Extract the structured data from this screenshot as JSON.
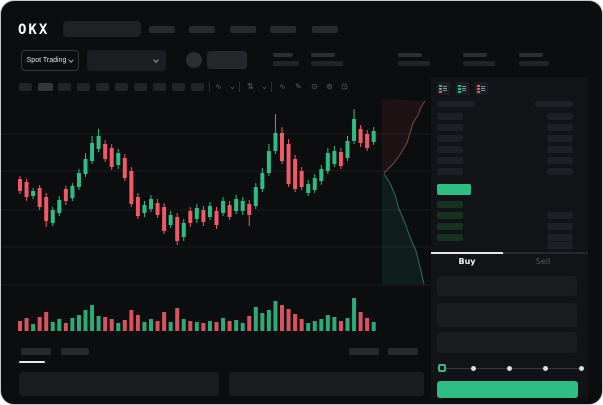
{
  "app": {
    "brand": "OKX"
  },
  "header": {
    "market_selector": {
      "label": "Spot Trading"
    },
    "nav_placeholder_count": 5
  },
  "toolbar": {
    "right_icons": [
      {
        "name": "indicator-wave-icon",
        "glyph": "∿"
      },
      {
        "name": "chevron-down-icon",
        "glyph": "⌄"
      },
      {
        "name": "compare-icon",
        "glyph": "⇅"
      },
      {
        "name": "chevron-down-icon-2",
        "glyph": "⌄"
      },
      {
        "name": "line-tool-icon",
        "glyph": "∿"
      },
      {
        "name": "draw-icon",
        "glyph": "✎"
      },
      {
        "name": "camera-icon",
        "glyph": "⊙"
      },
      {
        "name": "settings-icon",
        "glyph": "⊚"
      },
      {
        "name": "fullscreen-icon",
        "glyph": "⊡"
      }
    ]
  },
  "orderbook": {
    "layout_icons": [
      "book-both-icon",
      "book-bids-icon",
      "book-asks-icon"
    ],
    "ask_row_count": 7,
    "bid_row_count": 4,
    "last_price_highlight_color": "#2ebd85"
  },
  "trade_panel": {
    "tabs": [
      {
        "label": "Buy",
        "active": true
      },
      {
        "label": "Sell",
        "active": false
      }
    ],
    "inputs": 3,
    "slider": {
      "stops": 5,
      "position_index": 0
    },
    "submit_button_color": "#2ebd85"
  },
  "colors": {
    "up": "#2ebd85",
    "down": "#ef5a66",
    "grid": "#1b1d20"
  },
  "chart_data": {
    "type": "candlestick",
    "title": "",
    "xlabel": "",
    "ylabel": "",
    "ylim": [
      0,
      190
    ],
    "grid": true,
    "gridline_values": [
      4,
      42,
      79,
      118,
      155,
      193
    ],
    "candles_ochl": [
      [
        112,
        100,
        115,
        97
      ],
      [
        109,
        94,
        112,
        90
      ],
      [
        95,
        100,
        103,
        92
      ],
      [
        103,
        84,
        106,
        81
      ],
      [
        94,
        70,
        98,
        64
      ],
      [
        68,
        81,
        84,
        65
      ],
      [
        78,
        91,
        95,
        75
      ],
      [
        102,
        90,
        105,
        86
      ],
      [
        93,
        105,
        108,
        90
      ],
      [
        104,
        118,
        122,
        101
      ],
      [
        117,
        132,
        138,
        114
      ],
      [
        130,
        148,
        155,
        127
      ],
      [
        142,
        155,
        162,
        139
      ],
      [
        147,
        132,
        151,
        129
      ],
      [
        143,
        124,
        147,
        121
      ],
      [
        126,
        138,
        142,
        122
      ],
      [
        133,
        113,
        137,
        110
      ],
      [
        120,
        87,
        124,
        84
      ],
      [
        94,
        75,
        98,
        72
      ],
      [
        78,
        86,
        90,
        74
      ],
      [
        82,
        92,
        96,
        79
      ],
      [
        88,
        76,
        92,
        73
      ],
      [
        84,
        60,
        88,
        57
      ],
      [
        66,
        76,
        80,
        63
      ],
      [
        74,
        50,
        78,
        46
      ],
      [
        54,
        68,
        72,
        50
      ],
      [
        80,
        68,
        84,
        64
      ],
      [
        72,
        83,
        87,
        68
      ],
      [
        81,
        69,
        85,
        65
      ],
      [
        74,
        85,
        89,
        71
      ],
      [
        80,
        66,
        84,
        62
      ],
      [
        78,
        90,
        94,
        75
      ],
      [
        86,
        74,
        90,
        71
      ],
      [
        80,
        92,
        96,
        77
      ],
      [
        80,
        90,
        94,
        76
      ],
      [
        87,
        76,
        91,
        65
      ],
      [
        85,
        104,
        108,
        82
      ],
      [
        102,
        118,
        123,
        99
      ],
      [
        118,
        140,
        147,
        115
      ],
      [
        140,
        158,
        177,
        137
      ],
      [
        158,
        130,
        164,
        127
      ],
      [
        147,
        107,
        152,
        104
      ],
      [
        132,
        102,
        136,
        99
      ],
      [
        120,
        104,
        124,
        101
      ],
      [
        98,
        107,
        111,
        95
      ],
      [
        101,
        113,
        117,
        98
      ],
      [
        110,
        122,
        126,
        106
      ],
      [
        120,
        138,
        143,
        117
      ],
      [
        127,
        140,
        145,
        124
      ],
      [
        139,
        125,
        143,
        122
      ],
      [
        133,
        150,
        155,
        130
      ],
      [
        150,
        172,
        182,
        147
      ],
      [
        162,
        148,
        166,
        144
      ],
      [
        157,
        143,
        161,
        140
      ],
      [
        149,
        160,
        164,
        146
      ]
    ],
    "volumes": [
      10,
      13,
      7,
      14,
      19,
      9,
      12,
      8,
      13,
      16,
      21,
      26,
      15,
      14,
      12,
      8,
      11,
      21,
      16,
      9,
      12,
      10,
      19,
      9,
      23,
      12,
      10,
      9,
      8,
      10,
      9,
      13,
      10,
      11,
      8,
      15,
      24,
      18,
      21,
      30,
      26,
      22,
      17,
      12,
      8,
      10,
      12,
      16,
      14,
      10,
      13,
      33,
      19,
      13,
      9
    ],
    "depth_profile": {
      "asks_line": [
        [
          424,
          100
        ],
        [
          420,
          106
        ],
        [
          417,
          114
        ],
        [
          412,
          122
        ],
        [
          409,
          132
        ],
        [
          406,
          142
        ],
        [
          400,
          152
        ],
        [
          393,
          162
        ],
        [
          383,
          172
        ]
      ],
      "bids_line": [
        [
          383,
          173
        ],
        [
          389,
          182
        ],
        [
          394,
          194
        ],
        [
          398,
          208
        ],
        [
          404,
          222
        ],
        [
          409,
          236
        ],
        [
          415,
          250
        ],
        [
          419,
          266
        ],
        [
          423,
          283
        ]
      ]
    }
  }
}
